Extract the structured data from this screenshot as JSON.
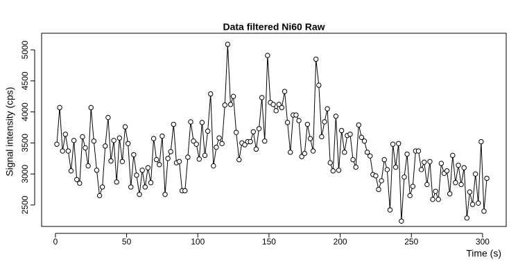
{
  "chart_data": {
    "type": "line",
    "title": "Data filtered Ni60 Raw",
    "x_label": "Time (s)",
    "y_label": "Signal intensity (cps)",
    "x": [
      1,
      3,
      5,
      7,
      9,
      11,
      13,
      15,
      17,
      19,
      21,
      23,
      25,
      27,
      29,
      31,
      33,
      35,
      37,
      39,
      41,
      43,
      45,
      47,
      49,
      51,
      53,
      55,
      57,
      59,
      61,
      63,
      65,
      67,
      69,
      71,
      73,
      75,
      77,
      79,
      81,
      83,
      85,
      87,
      89,
      91,
      93,
      95,
      97,
      99,
      101,
      103,
      105,
      107,
      109,
      111,
      113,
      115,
      117,
      119,
      121,
      123,
      125,
      127,
      129,
      131,
      133,
      135,
      137,
      139,
      141,
      143,
      145,
      147,
      149,
      151,
      153,
      155,
      157,
      159,
      161,
      163,
      165,
      167,
      169,
      171,
      173,
      175,
      177,
      179,
      181,
      183,
      185,
      187,
      189,
      191,
      193,
      195,
      197,
      199,
      201,
      203,
      205,
      207,
      209,
      211,
      213,
      215,
      217,
      219,
      221,
      223,
      225,
      227,
      229,
      231,
      233,
      235,
      237,
      239,
      241,
      243,
      245,
      247,
      249,
      251,
      253,
      255,
      257,
      259,
      261,
      263,
      265,
      267,
      269,
      271,
      273,
      275,
      277,
      279,
      281,
      283,
      285,
      287,
      289,
      291,
      293,
      295,
      297,
      299,
      301,
      303
    ],
    "series": [
      {
        "name": "Ni60",
        "color": "#000000",
        "values": [
          3480,
          4070,
          3370,
          3640,
          3370,
          3050,
          3540,
          2910,
          2850,
          3600,
          3420,
          3130,
          4070,
          3530,
          3060,
          2650,
          2790,
          3450,
          3910,
          3210,
          3540,
          2870,
          3580,
          3200,
          3760,
          3490,
          2790,
          3310,
          2980,
          2670,
          3060,
          2790,
          3100,
          2860,
          3570,
          3230,
          3150,
          3610,
          2670,
          3250,
          3360,
          3800,
          3180,
          3200,
          2730,
          2730,
          3270,
          3840,
          3530,
          3480,
          3240,
          3830,
          3300,
          3690,
          4290,
          3130,
          3430,
          3580,
          3490,
          4110,
          5090,
          4120,
          4250,
          3670,
          3230,
          3500,
          3470,
          3520,
          3520,
          3680,
          3400,
          3730,
          4230,
          3530,
          4910,
          4150,
          4120,
          4020,
          4120,
          4070,
          4330,
          3830,
          3350,
          3950,
          3950,
          3860,
          3280,
          3330,
          3800,
          3570,
          3370,
          4850,
          4430,
          3600,
          3840,
          4050,
          3180,
          3050,
          3930,
          3060,
          3700,
          3350,
          3620,
          3640,
          3230,
          3110,
          3790,
          3590,
          3530,
          3350,
          3290,
          2990,
          2970,
          2750,
          2890,
          3230,
          3070,
          2420,
          3480,
          3110,
          3490,
          2240,
          2950,
          3320,
          2650,
          2800,
          3370,
          3370,
          3070,
          3190,
          2830,
          3200,
          2590,
          2720,
          2590,
          3170,
          3010,
          3050,
          2680,
          3300,
          2860,
          3140,
          2830,
          3100,
          2290,
          2710,
          2510,
          3000,
          2530,
          3520,
          2400,
          2930
        ]
      }
    ],
    "xlim": [
      -9.7,
      316.6
    ],
    "ylim": [
      2154,
      5268
    ],
    "xticks": [
      0,
      50,
      100,
      150,
      200,
      250,
      300
    ],
    "yticks": [
      2500,
      3000,
      3500,
      4000,
      4500,
      5000
    ]
  }
}
